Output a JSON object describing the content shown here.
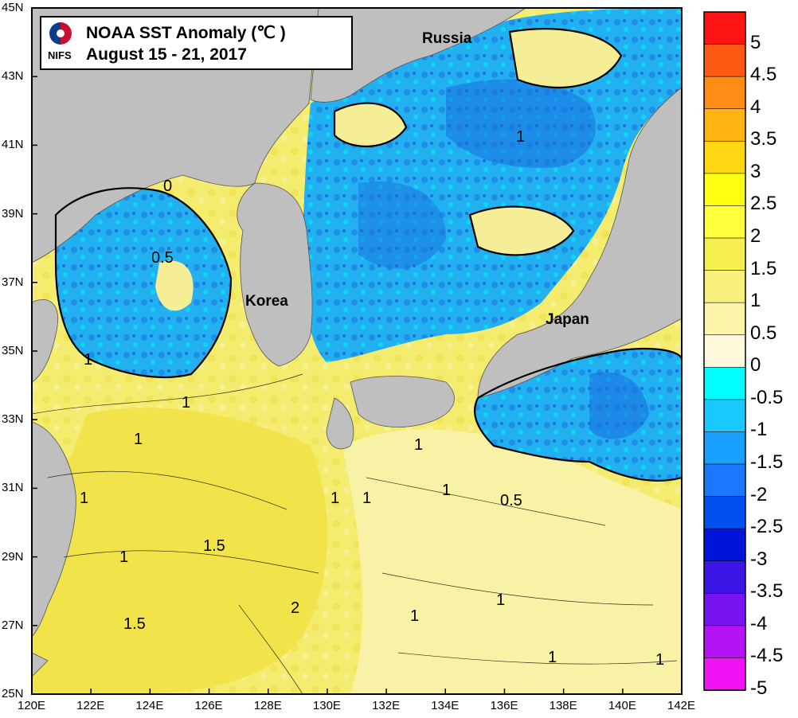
{
  "title": "NOAA SST Anomaly (℃ )",
  "subtitle": "August 15 - 21, 2017",
  "logo_text": "NIFS",
  "places": [
    "Russia",
    "Korea",
    "Japan"
  ],
  "lat_ticks": [
    "45N",
    "43N",
    "41N",
    "39N",
    "37N",
    "35N",
    "33N",
    "31N",
    "29N",
    "27N",
    "25N"
  ],
  "lon_ticks": [
    "120E",
    "122E",
    "124E",
    "126E",
    "128E",
    "130E",
    "132E",
    "134E",
    "136E",
    "138E",
    "140E",
    "142E"
  ],
  "colorbar": {
    "labels": [
      "5",
      "4.5",
      "4",
      "3.5",
      "3",
      "2.5",
      "2",
      "1.5",
      "1",
      "0.5",
      "0",
      "-0.5",
      "-1",
      "-1.5",
      "-2",
      "-2.5",
      "-3",
      "-3.5",
      "-4",
      "-4.5",
      "-5"
    ],
    "colors_top_to_bottom": [
      "#ff1414",
      "#ff5a14",
      "#ff8c14",
      "#ffb414",
      "#ffd814",
      "#ffff14",
      "#ffff3c",
      "#f5f050",
      "#f8f07a",
      "#fcf4a8",
      "#fffadc",
      "#00ffff",
      "#19c8ff",
      "#19a0ff",
      "#1978ff",
      "#0050f0",
      "#0014dc",
      "#3c14e6",
      "#7814f0",
      "#b414f5",
      "#f014f5"
    ]
  },
  "contour_labels": [
    "1",
    "1",
    "0",
    "0.5",
    "1",
    "1",
    "1",
    "1",
    "1",
    "1",
    "1.5",
    "1.5",
    "2",
    "1",
    "1",
    "1",
    "0.5",
    "1",
    "1",
    "1"
  ],
  "colors": {
    "land": "#bfbfbf",
    "warm_sea": "#f5f07a",
    "cool_sea": "#2ab4f0",
    "neutral_sea": "#fbf7c8"
  }
}
